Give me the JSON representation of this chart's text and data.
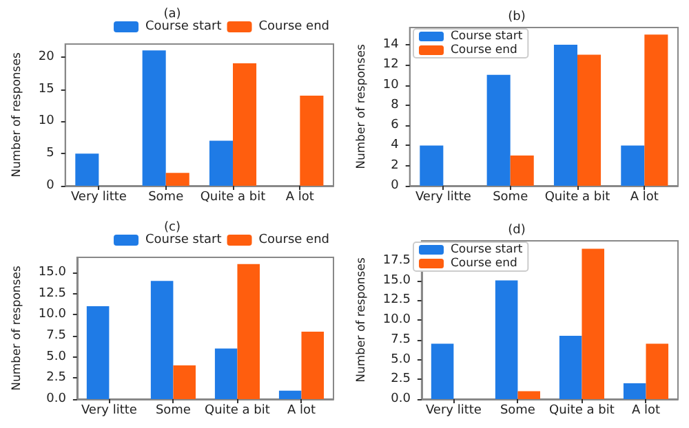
{
  "chart_data": [
    {
      "type": "bar",
      "title": "(a)",
      "ylabel": "Number of responses",
      "categories": [
        "Very litte",
        "Some",
        "Quite a bit",
        "A lot"
      ],
      "series": [
        {
          "name": "Course start",
          "color": "#1f7be6",
          "values": [
            5,
            21,
            7,
            0
          ]
        },
        {
          "name": "Course end",
          "color": "#ff5e0e",
          "values": [
            0,
            2,
            19,
            14
          ]
        }
      ],
      "ylim": [
        0,
        22
      ],
      "yticks": [
        0,
        5,
        10,
        15,
        20
      ],
      "legend": "top right",
      "grid": false
    },
    {
      "type": "bar",
      "title": "(b)",
      "ylabel": "Number of responses",
      "categories": [
        "Very litte",
        "Some",
        "Quite a bit",
        "A lot"
      ],
      "series": [
        {
          "name": "Course start",
          "color": "#1f7be6",
          "values": [
            4,
            11,
            14,
            4
          ]
        },
        {
          "name": "Course end",
          "color": "#ff5e0e",
          "values": [
            0,
            3,
            13,
            15
          ]
        }
      ],
      "ylim": [
        0,
        15.7
      ],
      "yticks": [
        0,
        2,
        4,
        6,
        8,
        10,
        12,
        14
      ],
      "legend": "top left",
      "grid": false
    },
    {
      "type": "bar",
      "title": "(c)",
      "ylabel": "Number of responses",
      "categories": [
        "Very litte",
        "Some",
        "Quite a bit",
        "A lot"
      ],
      "series": [
        {
          "name": "Course start",
          "color": "#1f7be6",
          "values": [
            11,
            14,
            6,
            1
          ]
        },
        {
          "name": "Course end",
          "color": "#ff5e0e",
          "values": [
            0,
            4,
            16,
            8
          ]
        }
      ],
      "ylim": [
        0,
        16.8
      ],
      "yticks": [
        {
          "value": 0,
          "label": "0.0"
        },
        {
          "value": 2.5,
          "label": "2.5"
        },
        {
          "value": 5,
          "label": "5.0"
        },
        {
          "value": 7.5,
          "label": "7.5"
        },
        {
          "value": 10,
          "label": "10.0"
        },
        {
          "value": 12.5,
          "label": "12.5"
        },
        {
          "value": 15,
          "label": "15.0"
        }
      ],
      "legend": "top right",
      "grid": false
    },
    {
      "type": "bar",
      "title": "(d)",
      "ylabel": "Number of responses",
      "categories": [
        "Very litte",
        "Some",
        "Quite a bit",
        "A lot"
      ],
      "series": [
        {
          "name": "Course start",
          "color": "#1f7be6",
          "values": [
            7,
            15,
            8,
            2
          ]
        },
        {
          "name": "Course end",
          "color": "#ff5e0e",
          "values": [
            0,
            1,
            19,
            7
          ]
        }
      ],
      "ylim": [
        0,
        20
      ],
      "yticks": [
        {
          "value": 0,
          "label": "0.0"
        },
        {
          "value": 2.5,
          "label": "2.5"
        },
        {
          "value": 5,
          "label": "5.0"
        },
        {
          "value": 7.5,
          "label": "7.5"
        },
        {
          "value": 10,
          "label": "10.0"
        },
        {
          "value": 12.5,
          "label": "12.5"
        },
        {
          "value": 15,
          "label": "15.0"
        },
        {
          "value": 17.5,
          "label": "17.5"
        }
      ],
      "legend": "top left",
      "grid": false
    }
  ]
}
